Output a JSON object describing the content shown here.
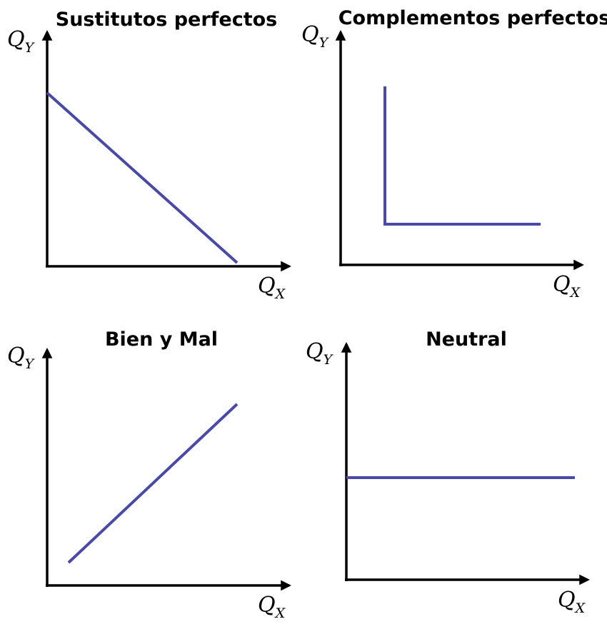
{
  "colors": {
    "curve": "#4a4aa6",
    "axes": "#000000"
  },
  "panels": [
    {
      "title": "Sustitutos perfectos",
      "shape": "descending-line",
      "y_label": {
        "base": "Q",
        "sub": "Y"
      },
      "x_label": {
        "base": "Q",
        "sub": "X"
      }
    },
    {
      "title": "Complementos perfectos",
      "shape": "l-shaped",
      "y_label": {
        "base": "Q",
        "sub": "Y"
      },
      "x_label": {
        "base": "Q",
        "sub": "X"
      }
    },
    {
      "title": "Bien y Mal",
      "shape": "ascending-line",
      "y_label": {
        "base": "Q",
        "sub": "Y"
      },
      "x_label": {
        "base": "Q",
        "sub": "X"
      }
    },
    {
      "title": "Neutral",
      "shape": "horizontal-line",
      "y_label": {
        "base": "Q",
        "sub": "Y"
      },
      "x_label": {
        "base": "Q",
        "sub": "X"
      }
    }
  ]
}
